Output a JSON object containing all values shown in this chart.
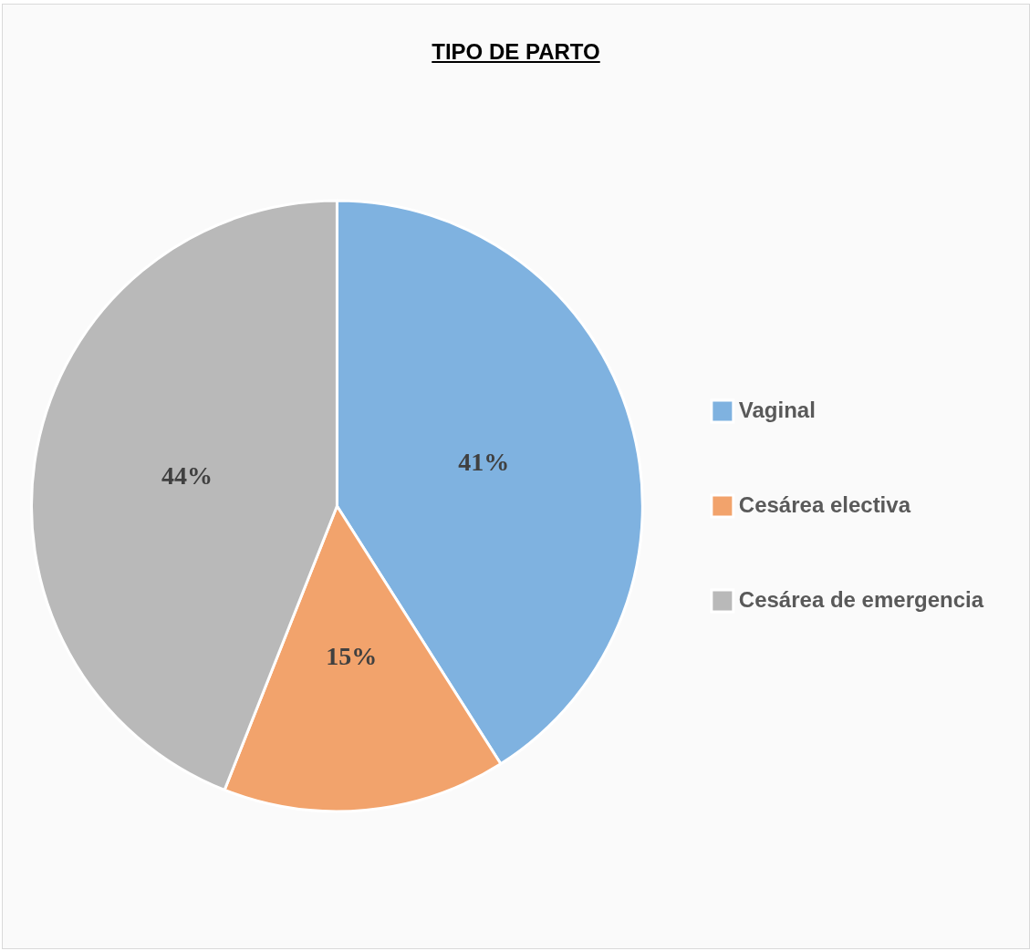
{
  "chart_data": {
    "type": "pie",
    "title": "TIPO DE PARTO",
    "categories": [
      "Vaginal",
      "Cesárea electiva",
      "Cesárea de emergencia"
    ],
    "values": [
      41,
      15,
      44
    ],
    "value_labels": [
      "41%",
      "15%",
      "44%"
    ],
    "colors": [
      "#7fb2e0",
      "#f2a36c",
      "#b9b9b9"
    ],
    "legend": "right"
  }
}
